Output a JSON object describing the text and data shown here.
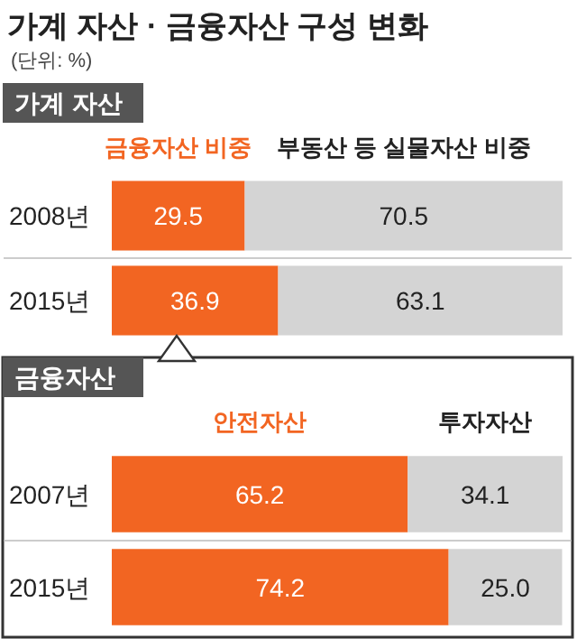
{
  "chart_data": [
    {
      "type": "bar",
      "title": "가계 자산 · 금융자산 구성 변화",
      "subtitle": "가계 자산",
      "annotations": [
        "(단위: %)"
      ],
      "orientation": "horizontal",
      "stacked": true,
      "data_labels": true,
      "legend": "top",
      "categories": [
        "2008년",
        "2015년"
      ],
      "series": [
        {
          "name": "금융자산 비중",
          "color": "#f26522",
          "values": [
            29.5,
            36.9
          ]
        },
        {
          "name": "부동산 등 실물자산 비중",
          "color": "#d4d4d4",
          "values": [
            70.5,
            63.1
          ]
        }
      ]
    },
    {
      "type": "bar",
      "title": "금융자산",
      "orientation": "horizontal",
      "stacked": true,
      "data_labels": true,
      "legend": "top",
      "categories": [
        "2007년",
        "2015년"
      ],
      "series": [
        {
          "name": "안전자산",
          "color": "#f26522",
          "values": [
            65.2,
            74.2
          ]
        },
        {
          "name": "투자자산",
          "color": "#d4d4d4",
          "values": [
            34.1,
            25.0
          ],
          "value_labels": [
            "34.1",
            "25.0"
          ]
        }
      ]
    }
  ]
}
